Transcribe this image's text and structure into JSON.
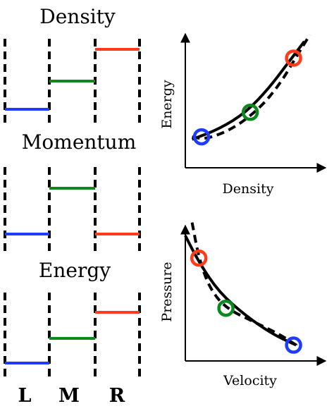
{
  "panels": [
    {
      "title": "Density",
      "levels": [
        {
          "region": "L",
          "value": 0.1,
          "color": "#1f3bff"
        },
        {
          "region": "M",
          "value": 0.5,
          "color": "#0a8a1a"
        },
        {
          "region": "R",
          "value": 0.95,
          "color": "#ff3b1a"
        }
      ]
    },
    {
      "title": "Momentum",
      "levels": [
        {
          "region": "L",
          "value": 0.15,
          "color": "#1f3bff"
        },
        {
          "region": "M",
          "value": 0.8,
          "color": "#0a8a1a"
        },
        {
          "region": "R",
          "value": 0.15,
          "color": "#ff3b1a"
        }
      ]
    },
    {
      "title": "Energy",
      "levels": [
        {
          "region": "L",
          "value": 0.1,
          "color": "#1f3bff"
        },
        {
          "region": "M",
          "value": 0.45,
          "color": "#0a8a1a"
        },
        {
          "region": "R",
          "value": 0.82,
          "color": "#ff3b1a"
        }
      ]
    }
  ],
  "regions": [
    "L",
    "M",
    "R"
  ],
  "plots": [
    {
      "xlabel": "Density",
      "ylabel": "Energy",
      "solid_curve": [
        [
          0.05,
          0.22
        ],
        [
          0.25,
          0.3
        ],
        [
          0.45,
          0.43
        ],
        [
          0.62,
          0.62
        ],
        [
          0.75,
          0.8
        ],
        [
          0.88,
          0.98
        ]
      ],
      "dashed_curve": [
        [
          0.05,
          0.24
        ],
        [
          0.15,
          0.22
        ],
        [
          0.35,
          0.3
        ],
        [
          0.55,
          0.46
        ],
        [
          0.7,
          0.65
        ],
        [
          0.82,
          0.86
        ],
        [
          0.92,
          1.03
        ]
      ],
      "points": [
        {
          "state": "L",
          "x": 0.12,
          "y": 0.24,
          "color": "#1f3bff"
        },
        {
          "state": "M",
          "x": 0.48,
          "y": 0.43,
          "color": "#0a8a1a"
        },
        {
          "state": "R",
          "x": 0.8,
          "y": 0.85,
          "color": "#ff3b1a"
        }
      ]
    },
    {
      "xlabel": "Velocity",
      "ylabel": "Pressure",
      "solid_curve": [
        [
          0.0,
          0.95
        ],
        [
          0.1,
          0.75
        ],
        [
          0.25,
          0.52
        ],
        [
          0.45,
          0.34
        ],
        [
          0.65,
          0.2
        ],
        [
          0.82,
          0.12
        ]
      ],
      "dashed_curve": [
        [
          0.05,
          1.05
        ],
        [
          0.1,
          0.78
        ],
        [
          0.18,
          0.55
        ],
        [
          0.3,
          0.4
        ],
        [
          0.5,
          0.3
        ],
        [
          0.7,
          0.2
        ],
        [
          0.82,
          0.12
        ]
      ],
      "points": [
        {
          "state": "R",
          "x": 0.1,
          "y": 0.78,
          "color": "#ff3b1a"
        },
        {
          "state": "M",
          "x": 0.3,
          "y": 0.4,
          "color": "#0a8a1a"
        },
        {
          "state": "L",
          "x": 0.8,
          "y": 0.12,
          "color": "#1f3bff"
        }
      ]
    }
  ]
}
